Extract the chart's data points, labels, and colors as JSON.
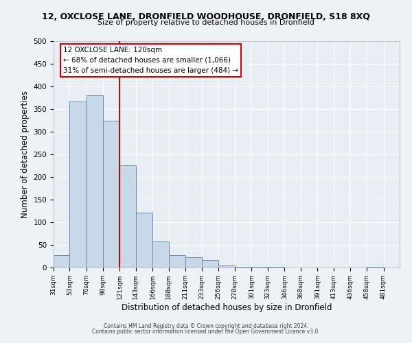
{
  "title_line1": "12, OXCLOSE LANE, DRONFIELD WOODHOUSE, DRONFIELD, S18 8XQ",
  "title_line2": "Size of property relative to detached houses in Dronfield",
  "xlabel": "Distribution of detached houses by size in Dronfield",
  "ylabel": "Number of detached properties",
  "bar_edges": [
    31,
    53,
    76,
    98,
    121,
    143,
    166,
    188,
    211,
    233,
    256,
    278,
    301,
    323,
    346,
    368,
    391,
    413,
    436,
    458,
    481
  ],
  "bar_heights": [
    27,
    367,
    381,
    325,
    226,
    121,
    58,
    27,
    22,
    16,
    5,
    2,
    1,
    1,
    0,
    0,
    0,
    0,
    0,
    2
  ],
  "bar_color": "#c8d8e8",
  "bar_edge_color": "#6090b0",
  "vline_x": 121,
  "vline_color": "#cc0000",
  "annotation_line1": "12 OXCLOSE LANE: 120sqm",
  "annotation_line2": "← 68% of detached houses are smaller (1,066)",
  "annotation_line3": "31% of semi-detached houses are larger (484) →",
  "annotation_box_color": "#ffffff",
  "annotation_box_edge_color": "#cc0000",
  "ylim": [
    0,
    500
  ],
  "xlim": [
    31,
    503
  ],
  "bg_color": "#e8eef4",
  "fig_bg_color": "#edf2f7",
  "grid_color": "#ffffff",
  "footer_line1": "Contains HM Land Registry data © Crown copyright and database right 2024.",
  "footer_line2": "Contains public sector information licensed under the Open Government Licence v3.0.",
  "tick_labels": [
    "31sqm",
    "53sqm",
    "76sqm",
    "98sqm",
    "121sqm",
    "143sqm",
    "166sqm",
    "188sqm",
    "211sqm",
    "233sqm",
    "256sqm",
    "278sqm",
    "301sqm",
    "323sqm",
    "346sqm",
    "368sqm",
    "391sqm",
    "413sqm",
    "436sqm",
    "458sqm",
    "481sqm"
  ],
  "tick_positions": [
    31,
    53,
    76,
    98,
    121,
    143,
    166,
    188,
    211,
    233,
    256,
    278,
    301,
    323,
    346,
    368,
    391,
    413,
    436,
    458,
    481
  ],
  "yticks": [
    0,
    50,
    100,
    150,
    200,
    250,
    300,
    350,
    400,
    450,
    500
  ]
}
